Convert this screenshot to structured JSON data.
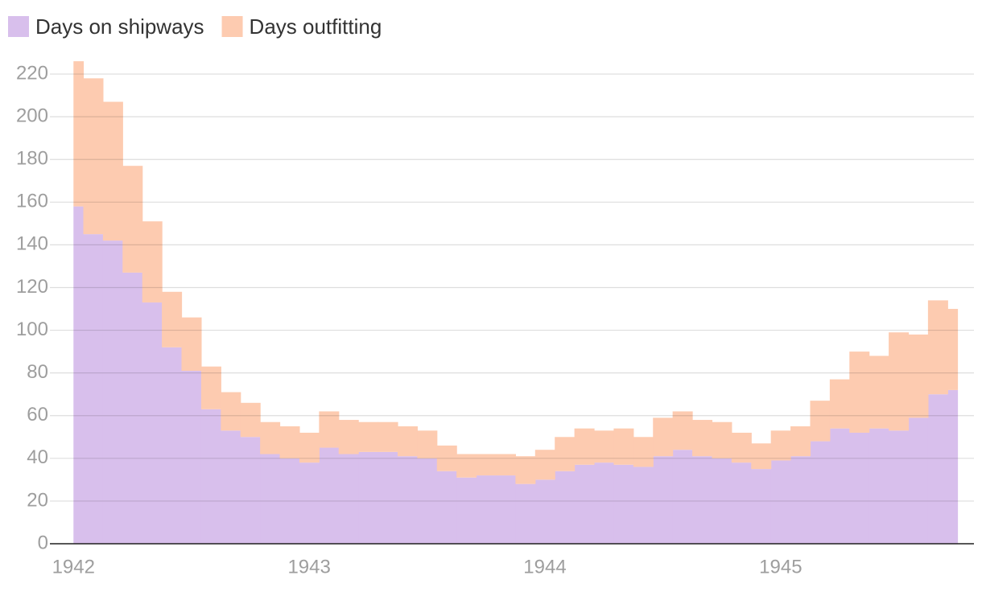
{
  "chart_data": {
    "type": "stacked-step-area",
    "x": [
      "1942-01",
      "1942-02",
      "1942-03",
      "1942-04",
      "1942-05",
      "1942-06",
      "1942-07",
      "1942-08",
      "1942-09",
      "1942-10",
      "1942-11",
      "1942-12",
      "1943-01",
      "1943-02",
      "1943-03",
      "1943-04",
      "1943-05",
      "1943-06",
      "1943-07",
      "1943-08",
      "1943-09",
      "1943-10",
      "1943-11",
      "1943-12",
      "1944-01",
      "1944-02",
      "1944-03",
      "1944-04",
      "1944-05",
      "1944-06",
      "1944-07",
      "1944-08",
      "1944-09",
      "1944-10",
      "1944-11",
      "1944-12",
      "1945-01",
      "1945-02",
      "1945-03",
      "1945-04",
      "1945-05",
      "1945-06",
      "1945-07",
      "1945-08",
      "1945-09",
      "1945-10"
    ],
    "series": [
      {
        "name": "Days on shipways",
        "color": "#d8bfec",
        "values": [
          158,
          145,
          142,
          127,
          113,
          92,
          81,
          63,
          53,
          50,
          42,
          40,
          38,
          45,
          42,
          43,
          43,
          41,
          40,
          34,
          31,
          32,
          32,
          28,
          30,
          34,
          37,
          38,
          37,
          36,
          41,
          44,
          41,
          40,
          38,
          35,
          39,
          41,
          48,
          54,
          52,
          54,
          53,
          59,
          70,
          72
        ]
      },
      {
        "name": "Days outfitting",
        "color": "#fdcbb0",
        "values": [
          68,
          73,
          65,
          50,
          38,
          26,
          25,
          20,
          18,
          16,
          15,
          15,
          14,
          17,
          16,
          14,
          14,
          14,
          13,
          12,
          11,
          10,
          10,
          13,
          14,
          16,
          17,
          15,
          17,
          14,
          18,
          18,
          17,
          17,
          14,
          12,
          14,
          14,
          19,
          23,
          38,
          34,
          46,
          39,
          44,
          38
        ]
      }
    ],
    "xlim": [
      1941.9,
      1945.82
    ],
    "xticks": [
      1942,
      1943,
      1944,
      1945
    ],
    "ylim": [
      0,
      230
    ],
    "yticks": [
      0,
      20,
      40,
      60,
      80,
      100,
      120,
      140,
      160,
      180,
      200,
      220
    ],
    "grid": true,
    "legend": "top-left"
  }
}
